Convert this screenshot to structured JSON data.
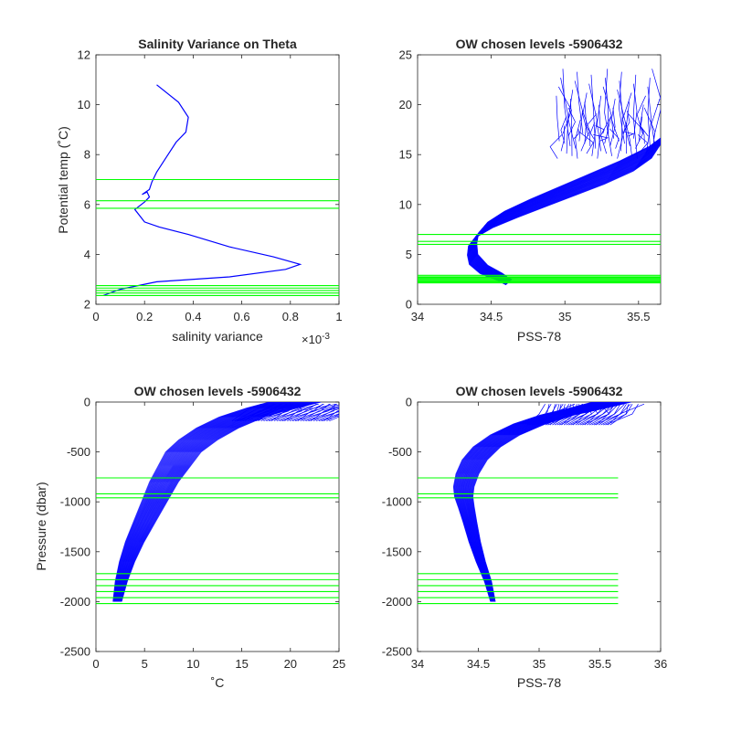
{
  "chart_data": [
    {
      "type": "line",
      "title": "Salinity Variance on Theta",
      "xlabel": "salinity variance",
      "ylabel": "Potential temp (˚C)",
      "x_exponent_label": "×10",
      "x_exponent_power": "-3",
      "xlim": [
        0,
        1
      ],
      "ylim": [
        2,
        12
      ],
      "xticks": [
        "0",
        "0.2",
        "0.4",
        "0.6",
        "0.8",
        "1"
      ],
      "yticks": [
        "2",
        "4",
        "6",
        "8",
        "10",
        "12"
      ],
      "series": [
        {
          "color": "#0000ff",
          "x": [
            0.25,
            0.34,
            0.38,
            0.37,
            0.33,
            0.29,
            0.25,
            0.23,
            0.22,
            0.19,
            0.21,
            0.22,
            0.2,
            0.16,
            0.2,
            0.26,
            0.38,
            0.55,
            0.73,
            0.84,
            0.78,
            0.55,
            0.25,
            0.1,
            0.03
          ],
          "y": [
            10.8,
            10.1,
            9.5,
            8.9,
            8.5,
            7.9,
            7.3,
            6.9,
            6.6,
            6.4,
            6.5,
            6.3,
            6.1,
            5.8,
            5.3,
            5.1,
            4.8,
            4.3,
            3.9,
            3.6,
            3.4,
            3.1,
            2.9,
            2.6,
            2.35
          ]
        }
      ],
      "hlines": [
        7.0,
        6.15,
        5.85,
        2.75,
        2.65,
        2.55,
        2.45,
        2.35
      ],
      "hline_color": "#00ff00"
    },
    {
      "type": "line",
      "title": "OW chosen levels -5906432",
      "xlabel": "PSS-78",
      "ylabel": "",
      "xlim": [
        34,
        35.65
      ],
      "ylim": [
        0,
        25
      ],
      "xticks": [
        "34",
        "34.5",
        "35",
        "35.5"
      ],
      "yticks": [
        "0",
        "5",
        "10",
        "15",
        "20",
        "25"
      ],
      "series": [
        {
          "color": "#0000ff",
          "x": [
            34.62,
            34.55,
            34.45,
            34.38,
            34.37,
            34.38,
            34.44,
            34.55,
            34.72,
            34.92,
            35.12,
            35.32,
            35.52,
            35.65
          ],
          "y": [
            2.2,
            2.8,
            3.5,
            4.5,
            5.5,
            6.5,
            7.5,
            8.5,
            9.6,
            10.8,
            12.0,
            13.2,
            14.6,
            16.0
          ]
        }
      ],
      "hlines": [
        7.0,
        6.3,
        6.0,
        2.9,
        2.75,
        2.65,
        2.55,
        2.45,
        2.35,
        2.25,
        2.15
      ],
      "hline_color": "#00ff00"
    },
    {
      "type": "line",
      "title": "OW chosen levels -5906432",
      "xlabel": "˚C",
      "ylabel": "Pressure (dbar)",
      "xlim": [
        0,
        25
      ],
      "ylim": [
        -2500,
        0
      ],
      "xticks": [
        "0",
        "5",
        "10",
        "15",
        "20",
        "25"
      ],
      "yticks": [
        "-2500",
        "-2000",
        "-1500",
        "-1000",
        "-500",
        "0"
      ],
      "series": [
        {
          "color": "#0000ff",
          "x": [
            2.2,
            2.6,
            3.2,
            4.0,
            5.0,
            6.0,
            7.0,
            8.0,
            9.0,
            10.5,
            12.5,
            15.0,
            18.0,
            20.5
          ],
          "y": [
            -2000,
            -1800,
            -1600,
            -1400,
            -1200,
            -1000,
            -800,
            -650,
            -500,
            -380,
            -260,
            -150,
            -60,
            0
          ]
        }
      ],
      "hlines": [
        -760,
        -920,
        -960,
        -1720,
        -1780,
        -1840,
        -1900,
        -1960,
        -2020
      ],
      "hline_color": "#00ff00"
    },
    {
      "type": "line",
      "title": "OW chosen levels -5906432",
      "xlabel": "PSS-78",
      "ylabel": "",
      "xlim": [
        34,
        36
      ],
      "ylim": [
        -2500,
        0
      ],
      "xticks": [
        "34",
        "34.5",
        "35",
        "35.5",
        "36"
      ],
      "yticks": [
        "-2500",
        "-2000",
        "-1500",
        "-1000",
        "-500",
        "0"
      ],
      "series": [
        {
          "color": "#0000ff",
          "x": [
            34.62,
            34.58,
            34.52,
            34.47,
            34.43,
            34.4,
            34.38,
            34.38,
            34.41,
            34.47,
            34.57,
            34.72,
            34.92,
            35.15,
            35.4,
            35.6
          ],
          "y": [
            -2000,
            -1800,
            -1600,
            -1400,
            -1200,
            -1050,
            -950,
            -850,
            -720,
            -580,
            -450,
            -330,
            -220,
            -130,
            -60,
            0
          ]
        }
      ],
      "hlines": [
        -760,
        -920,
        -960,
        -1720,
        -1780,
        -1840,
        -1900,
        -1960,
        -2020
      ],
      "hline_color": "#00ff00"
    }
  ]
}
